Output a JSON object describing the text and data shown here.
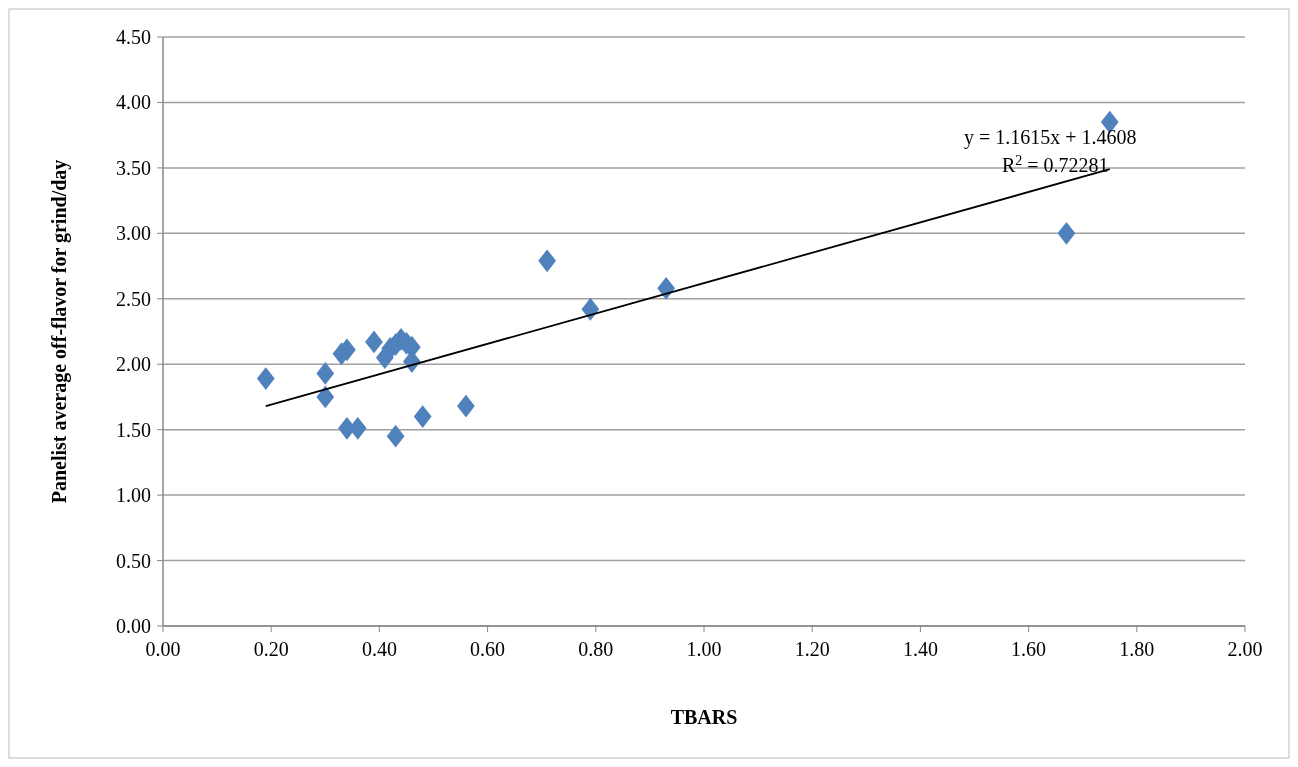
{
  "chart_data": {
    "type": "scatter",
    "xlabel": "TBARS",
    "ylabel": "Panelist average off-flavor for grind/day",
    "xlim": [
      0,
      2
    ],
    "xticks": [
      {
        "value": 0,
        "label": "0.00"
      },
      {
        "value": 0.2,
        "label": "0.20"
      },
      {
        "value": 0.4,
        "label": "0.40"
      },
      {
        "value": 0.6,
        "label": "0.60"
      },
      {
        "value": 0.8,
        "label": "0.80"
      },
      {
        "value": 1,
        "label": "1.00"
      },
      {
        "value": 1.2,
        "label": "1.20"
      },
      {
        "value": 1.4,
        "label": "1.40"
      },
      {
        "value": 1.6,
        "label": "1.60"
      },
      {
        "value": 1.8,
        "label": "1.80"
      },
      {
        "value": 2,
        "label": "2.00"
      }
    ],
    "ylim": [
      0,
      4.5
    ],
    "yticks": [
      {
        "value": 0,
        "label": "0.00"
      },
      {
        "value": 0.5,
        "label": "0.50"
      },
      {
        "value": 1,
        "label": "1.00"
      },
      {
        "value": 1.5,
        "label": "1.50"
      },
      {
        "value": 2,
        "label": "2.00"
      },
      {
        "value": 2.5,
        "label": "2.50"
      },
      {
        "value": 3,
        "label": "3.00"
      },
      {
        "value": 3.5,
        "label": "3.50"
      },
      {
        "value": 4,
        "label": "4.00"
      },
      {
        "value": 4.5,
        "label": "4.50"
      }
    ],
    "grid": "y",
    "marker": "diamond",
    "annotations": [
      "y = 1.1615x + 1.4608",
      "R$^{2}$ = 0.72281"
    ],
    "series": [
      {
        "color": "#4f81bd",
        "x": [
          0.19,
          0.3,
          0.3,
          0.33,
          0.34,
          0.34,
          0.36,
          0.39,
          0.41,
          0.42,
          0.43,
          0.44,
          0.45,
          0.46,
          0.46,
          0.43,
          0.48,
          0.56,
          0.71,
          0.79,
          0.93,
          1.67,
          1.75
        ],
        "values": [
          1.89,
          1.93,
          1.75,
          2.08,
          2.11,
          1.51,
          1.51,
          2.17,
          2.05,
          2.12,
          2.15,
          2.19,
          2.16,
          2.13,
          2.02,
          1.45,
          1.6,
          1.68,
          2.79,
          2.42,
          2.58,
          3.0,
          3.85
        ]
      },
      {
        "type": "line",
        "color": "#000000",
        "marker": "none",
        "x": [
          0.19,
          1.75
        ],
        "values": [
          1.68,
          3.49
        ]
      }
    ]
  }
}
